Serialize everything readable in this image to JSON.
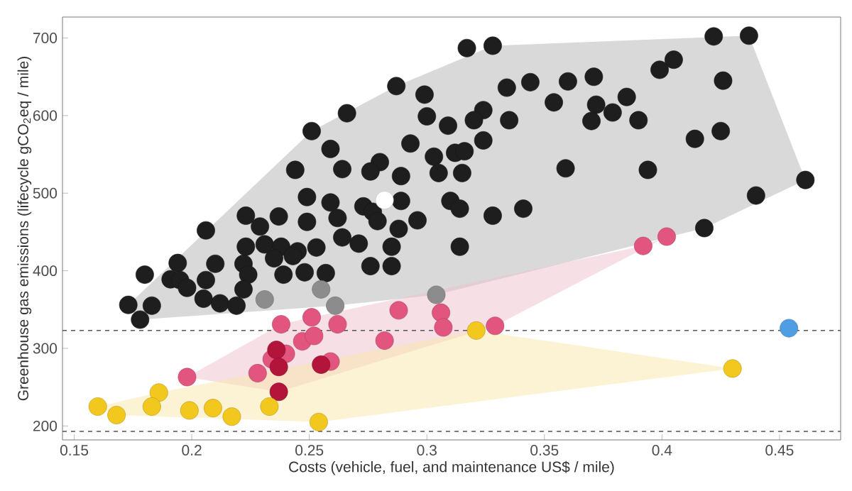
{
  "chart_data": {
    "type": "scatter",
    "xlabel": "Costs (vehicle, fuel, and maintenance US$ / mile)",
    "ylabel": "Greenhouse gas emissions (lifecycle gCO$_{2}$eq / mile)",
    "xlim": [
      0.145,
      0.476
    ],
    "ylim": [
      182,
      727
    ],
    "xticks": [
      0.15,
      0.2,
      0.25,
      0.3,
      0.35,
      0.4,
      0.45
    ],
    "yticks": [
      200,
      300,
      400,
      500,
      600,
      700
    ],
    "grid": false,
    "ref_lines": [
      {
        "axis": "y",
        "value": 323,
        "line_style": "dashed",
        "color": "#555555"
      },
      {
        "axis": "y",
        "value": 193,
        "line_style": "dashed",
        "color": "#555555"
      }
    ],
    "series": [
      {
        "type": "area",
        "color": "#b4b4b4",
        "x": [
          0.178,
          0.261,
          0.304,
          0.418,
          0.461,
          0.437,
          0.328,
          0.287,
          0.251,
          0.173
        ],
        "values": [
          337,
          355,
          369,
          455,
          517,
          703,
          690,
          638,
          580,
          356
        ]
      },
      {
        "type": "area",
        "color": "#efbfcd",
        "x": [
          0.198,
          0.237,
          0.329,
          0.402,
          0.392,
          0.251,
          0.238
        ],
        "values": [
          263,
          244,
          329,
          444,
          432,
          340,
          331
        ]
      },
      {
        "type": "area",
        "color": "#f9e7a9",
        "x": [
          0.16,
          0.168,
          0.254,
          0.43,
          0.321,
          0.186
        ],
        "values": [
          225,
          214,
          205,
          274,
          323,
          243
        ]
      },
      {
        "color": "#1e1e1e",
        "x": [
          0.287,
          0.299,
          0.3,
          0.309,
          0.266,
          0.251,
          0.293,
          0.259,
          0.303,
          0.28,
          0.276,
          0.244,
          0.264,
          0.305,
          0.289,
          0.249,
          0.259,
          0.273,
          0.289,
          0.277,
          0.279,
          0.296,
          0.262,
          0.249,
          0.223,
          0.237,
          0.229,
          0.206,
          0.288,
          0.264,
          0.271,
          0.285,
          0.223,
          0.231,
          0.238,
          0.245,
          0.253,
          0.31,
          0.422,
          0.437,
          0.317,
          0.328,
          0.426,
          0.399,
          0.405,
          0.334,
          0.344,
          0.36,
          0.371,
          0.354,
          0.372,
          0.385,
          0.379,
          0.37,
          0.39,
          0.324,
          0.32,
          0.335,
          0.324,
          0.414,
          0.425,
          0.312,
          0.316,
          0.315,
          0.359,
          0.394,
          0.461,
          0.44,
          0.314,
          0.328,
          0.341,
          0.418,
          0.314,
          0.235,
          0.243,
          0.194,
          0.21,
          0.18,
          0.191,
          0.195,
          0.198,
          0.206,
          0.222,
          0.224,
          0.222,
          0.239,
          0.248,
          0.257,
          0.276,
          0.285,
          0.205,
          0.212,
          0.219,
          0.173,
          0.183,
          0.178
        ],
        "values": [
          638,
          627,
          599,
          587,
          603,
          580,
          564,
          557,
          547,
          540,
          528,
          530,
          531,
          526,
          522,
          495,
          488,
          483,
          490,
          476,
          464,
          465,
          468,
          463,
          471,
          470,
          457,
          452,
          454,
          443,
          435,
          431,
          431,
          434,
          431,
          425,
          430,
          490,
          702,
          703,
          687,
          690,
          645,
          659,
          672,
          636,
          643,
          644,
          650,
          617,
          614,
          624,
          604,
          593,
          594,
          607,
          594,
          594,
          568,
          570,
          580,
          552,
          554,
          526,
          532,
          530,
          517,
          497,
          480,
          471,
          480,
          455,
          431,
          416,
          419,
          410,
          409,
          395,
          389,
          388,
          378,
          388,
          409,
          395,
          376,
          395,
          398,
          397,
          406,
          406,
          364,
          358,
          355,
          356,
          355,
          337
        ]
      },
      {
        "color": "#8c8c8c",
        "x": [
          0.231,
          0.255,
          0.261,
          0.304
        ],
        "values": [
          363,
          376,
          355,
          369
        ]
      },
      {
        "color": "#e2557f",
        "x": [
          0.392,
          0.402,
          0.251,
          0.238,
          0.262,
          0.288,
          0.306,
          0.307,
          0.247,
          0.252,
          0.282,
          0.24,
          0.234,
          0.259,
          0.228,
          0.198,
          0.329
        ],
        "values": [
          432,
          444,
          340,
          331,
          331,
          349,
          346,
          327,
          309,
          316,
          310,
          293,
          286,
          283,
          268,
          263,
          329
        ]
      },
      {
        "color": "#b3143a",
        "x": [
          0.236,
          0.237,
          0.255,
          0.237
        ],
        "values": [
          298,
          276,
          279,
          244
        ]
      },
      {
        "color": "#f2c81e",
        "x": [
          0.16,
          0.168,
          0.186,
          0.183,
          0.199,
          0.209,
          0.217,
          0.233,
          0.254,
          0.321,
          0.43
        ],
        "values": [
          225,
          214,
          243,
          225,
          220,
          223,
          212,
          225,
          205,
          323,
          274
        ]
      },
      {
        "color": "#4f9ee3",
        "x": [
          0.454
        ],
        "values": [
          326
        ]
      },
      {
        "color": "#ffffff",
        "x": [
          0.282
        ],
        "values": [
          491
        ]
      }
    ]
  }
}
